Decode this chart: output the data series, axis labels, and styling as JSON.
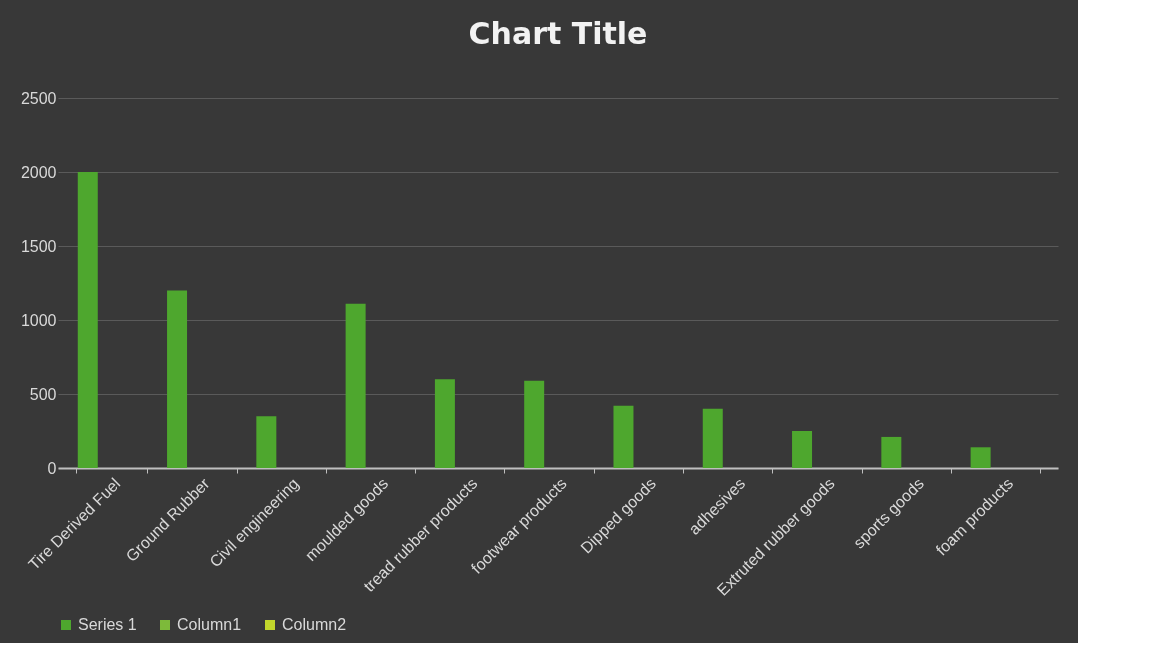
{
  "chart_data": {
    "type": "bar",
    "title": "Chart Title",
    "categories": [
      "Tire Derived Fuel",
      "Ground Rubber",
      "Civil engineering",
      "moulded goods",
      "tread rubber products",
      "footwear products",
      "Dipped goods",
      "adhesives",
      "Extruted rubber goods",
      "sports goods",
      "foam products"
    ],
    "series": [
      {
        "name": "Series 1",
        "color": "#4ea72e",
        "values": [
          2000,
          1200,
          350,
          1110,
          600,
          590,
          420,
          400,
          250,
          210,
          140
        ]
      },
      {
        "name": "Column1",
        "color": "#7dba3a",
        "values": [
          null,
          null,
          null,
          null,
          null,
          null,
          null,
          null,
          null,
          null,
          null
        ]
      },
      {
        "name": "Column2",
        "color": "#c2d62c",
        "values": [
          null,
          null,
          null,
          null,
          null,
          null,
          null,
          null,
          null,
          null,
          null
        ]
      }
    ],
    "ylim": [
      0,
      2500
    ],
    "yticks": [
      0,
      500,
      1000,
      1500,
      2000,
      2500
    ],
    "grid": "y",
    "legend": "bottom"
  }
}
